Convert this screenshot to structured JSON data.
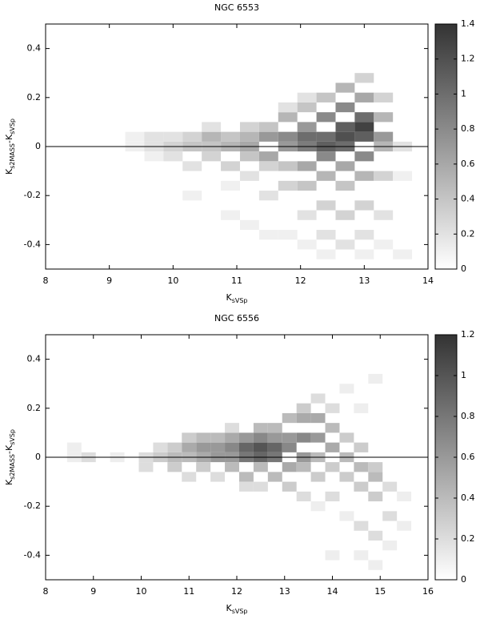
{
  "chart_data": [
    {
      "type": "heatmap",
      "title": "NGC 6553",
      "xlabel": [
        "K",
        "sVSp"
      ],
      "ylabel": [
        "K",
        "s2MASS",
        "-K",
        "sVSp"
      ],
      "xlim": [
        8,
        14
      ],
      "xticks": [
        8,
        9,
        10,
        11,
        12,
        13,
        14
      ],
      "ylim": [
        -0.5,
        0.5
      ],
      "yticks": [
        -0.4,
        -0.2,
        0,
        0.2,
        0.4
      ],
      "zlim": [
        0,
        1.4
      ],
      "zticks": [
        0,
        0.2,
        0.4,
        0.6,
        0.8,
        1,
        1.2,
        1.4
      ],
      "colormap": [
        "#ffffff",
        "#333333"
      ],
      "cell_size": [
        0.3,
        0.04
      ],
      "hline": 0,
      "x": [
        9.4,
        9.4,
        9.7,
        9.7,
        9.7,
        10.0,
        10.0,
        10.0,
        10.3,
        10.3,
        10.3,
        10.3,
        10.6,
        10.6,
        10.6,
        10.6,
        10.9,
        10.9,
        10.9,
        10.9,
        10.9,
        11.2,
        11.2,
        11.2,
        11.2,
        11.2,
        11.2,
        11.5,
        11.5,
        11.5,
        11.5,
        11.5,
        11.5,
        11.8,
        11.8,
        11.8,
        11.8,
        11.8,
        11.8,
        11.8,
        12.1,
        12.1,
        12.1,
        12.1,
        12.1,
        12.1,
        12.1,
        12.1,
        12.1,
        12.4,
        12.4,
        12.4,
        12.4,
        12.4,
        12.4,
        12.4,
        12.4,
        12.4,
        12.7,
        12.7,
        12.7,
        12.7,
        12.7,
        12.7,
        12.7,
        12.7,
        12.7,
        13.0,
        13.0,
        13.0,
        13.0,
        13.0,
        13.0,
        13.0,
        13.0,
        13.0,
        13.0,
        13.3,
        13.3,
        13.3,
        13.3,
        13.3,
        13.3,
        13.3,
        13.6,
        13.6,
        13.6
      ],
      "y": [
        0,
        0.04,
        0,
        -0.04,
        0.04,
        0,
        0.04,
        -0.04,
        0,
        0.04,
        -0.08,
        -0.2,
        0,
        0.04,
        -0.04,
        0.08,
        0,
        0.04,
        -0.08,
        -0.16,
        -0.28,
        0,
        0.04,
        -0.04,
        0.08,
        -0.12,
        -0.32,
        0.04,
        -0.04,
        0.08,
        -0.08,
        -0.2,
        -0.36,
        0.04,
        0,
        0.12,
        -0.08,
        -0.16,
        0.16,
        -0.36,
        0.04,
        0,
        0.08,
        -0.08,
        0.16,
        -0.16,
        -0.28,
        0.2,
        -0.4,
        0,
        0.04,
        -0.04,
        0.12,
        -0.12,
        0.2,
        -0.24,
        -0.36,
        -0.44,
        0.04,
        0.08,
        0,
        0.16,
        -0.08,
        0.24,
        -0.16,
        -0.28,
        -0.4,
        0.08,
        0.04,
        0.12,
        -0.04,
        0.2,
        -0.12,
        0.28,
        -0.24,
        -0.36,
        -0.44,
        0.04,
        0.12,
        0,
        0.2,
        -0.12,
        -0.28,
        -0.4,
        0,
        -0.12,
        -0.44
      ],
      "values": [
        0.1,
        0.1,
        0.2,
        0.1,
        0.2,
        0.3,
        0.2,
        0.2,
        0.4,
        0.3,
        0.2,
        0.1,
        0.4,
        0.5,
        0.3,
        0.2,
        0.5,
        0.4,
        0.3,
        0.1,
        0.1,
        0.6,
        0.5,
        0.4,
        0.3,
        0.2,
        0.1,
        0.7,
        0.6,
        0.4,
        0.3,
        0.2,
        0.1,
        0.8,
        0.7,
        0.5,
        0.4,
        0.3,
        0.2,
        0.1,
        1.0,
        0.9,
        0.7,
        0.6,
        0.4,
        0.4,
        0.2,
        0.2,
        0.1,
        1.1,
        1.0,
        0.8,
        0.8,
        0.5,
        0.4,
        0.3,
        0.2,
        0.1,
        1.2,
        1.1,
        1.0,
        0.8,
        0.6,
        0.5,
        0.4,
        0.3,
        0.2,
        1.3,
        1.1,
        1.0,
        0.8,
        0.6,
        0.5,
        0.3,
        0.3,
        0.2,
        0.1,
        0.7,
        0.5,
        0.5,
        0.3,
        0.3,
        0.2,
        0.1,
        0.2,
        0.1,
        0.1
      ]
    },
    {
      "type": "heatmap",
      "title": "NGC 6556",
      "xlabel": [
        "K",
        "sVSp"
      ],
      "ylabel": [
        "K",
        "s2MASS",
        "-K",
        "sVSp"
      ],
      "xlim": [
        8,
        16
      ],
      "xticks": [
        8,
        9,
        10,
        11,
        12,
        13,
        14,
        15,
        16
      ],
      "ylim": [
        -0.5,
        0.5
      ],
      "yticks": [
        -0.4,
        -0.2,
        0,
        0.2,
        0.4
      ],
      "zlim": [
        0,
        1.2
      ],
      "zticks": [
        0,
        0.2,
        0.4,
        0.6,
        0.8,
        1,
        1.2
      ],
      "colormap": [
        "#ffffff",
        "#333333"
      ],
      "cell_size": [
        0.3,
        0.04
      ],
      "hline": 0,
      "x": [
        8.6,
        8.6,
        8.9,
        9.5,
        10.1,
        10.1,
        10.4,
        10.4,
        10.7,
        10.7,
        10.7,
        11.0,
        11.0,
        11.0,
        11.0,
        11.3,
        11.3,
        11.3,
        11.3,
        11.6,
        11.6,
        11.6,
        11.6,
        11.9,
        11.9,
        11.9,
        11.9,
        11.9,
        12.2,
        12.2,
        12.2,
        12.2,
        12.2,
        12.5,
        12.5,
        12.5,
        12.5,
        12.5,
        12.5,
        12.8,
        12.8,
        12.8,
        12.8,
        12.8,
        13.1,
        13.1,
        13.1,
        13.1,
        13.1,
        13.4,
        13.4,
        13.4,
        13.4,
        13.4,
        13.4,
        13.7,
        13.7,
        13.7,
        13.7,
        13.7,
        13.7,
        14.0,
        14.0,
        14.0,
        14.0,
        14.0,
        14.0,
        14.3,
        14.3,
        14.3,
        14.3,
        14.3,
        14.6,
        14.6,
        14.6,
        14.6,
        14.6,
        14.6,
        14.9,
        14.9,
        14.9,
        14.9,
        14.9,
        14.9,
        15.2,
        15.2,
        15.2,
        15.5,
        15.5
      ],
      "y": [
        0.04,
        0,
        0,
        0,
        0,
        -0.04,
        0,
        0.04,
        0,
        0.04,
        -0.04,
        0.04,
        0,
        0.08,
        -0.08,
        0.04,
        0,
        0.08,
        -0.04,
        0.04,
        0,
        0.08,
        -0.08,
        0.04,
        0,
        0.08,
        -0.04,
        0.12,
        0.04,
        0,
        0.08,
        -0.08,
        -0.12,
        0.04,
        0,
        0.08,
        0.12,
        -0.04,
        -0.12,
        0.04,
        0,
        0.08,
        0.12,
        -0.08,
        0.04,
        0.08,
        -0.04,
        0.16,
        -0.12,
        0.08,
        0,
        0.16,
        -0.04,
        0.2,
        -0.16,
        0.08,
        0.16,
        0,
        -0.08,
        0.24,
        -0.2,
        0.04,
        0.12,
        -0.04,
        0.2,
        -0.16,
        -0.4,
        0,
        0.08,
        -0.08,
        0.28,
        -0.24,
        -0.04,
        0.04,
        -0.12,
        0.2,
        -0.28,
        -0.4,
        -0.08,
        -0.04,
        -0.16,
        -0.32,
        -0.44,
        0.32,
        -0.12,
        -0.24,
        -0.36,
        -0.16,
        -0.28
      ],
      "values": [
        0.1,
        0.1,
        0.2,
        0.1,
        0.2,
        0.2,
        0.3,
        0.2,
        0.4,
        0.3,
        0.3,
        0.5,
        0.4,
        0.3,
        0.2,
        0.6,
        0.5,
        0.4,
        0.3,
        0.6,
        0.6,
        0.4,
        0.2,
        0.7,
        0.6,
        0.5,
        0.4,
        0.2,
        0.9,
        0.8,
        0.6,
        0.4,
        0.2,
        1.0,
        0.9,
        0.7,
        0.4,
        0.4,
        0.2,
        0.9,
        0.8,
        0.6,
        0.4,
        0.4,
        0.7,
        0.6,
        0.5,
        0.4,
        0.3,
        0.7,
        0.6,
        0.5,
        0.4,
        0.3,
        0.2,
        0.6,
        0.5,
        0.4,
        0.3,
        0.2,
        0.1,
        0.5,
        0.4,
        0.3,
        0.2,
        0.2,
        0.1,
        0.4,
        0.3,
        0.3,
        0.1,
        0.1,
        0.4,
        0.3,
        0.3,
        0.1,
        0.2,
        0.1,
        0.4,
        0.3,
        0.3,
        0.2,
        0.1,
        0.1,
        0.2,
        0.2,
        0.1,
        0.1,
        0.1
      ]
    }
  ]
}
